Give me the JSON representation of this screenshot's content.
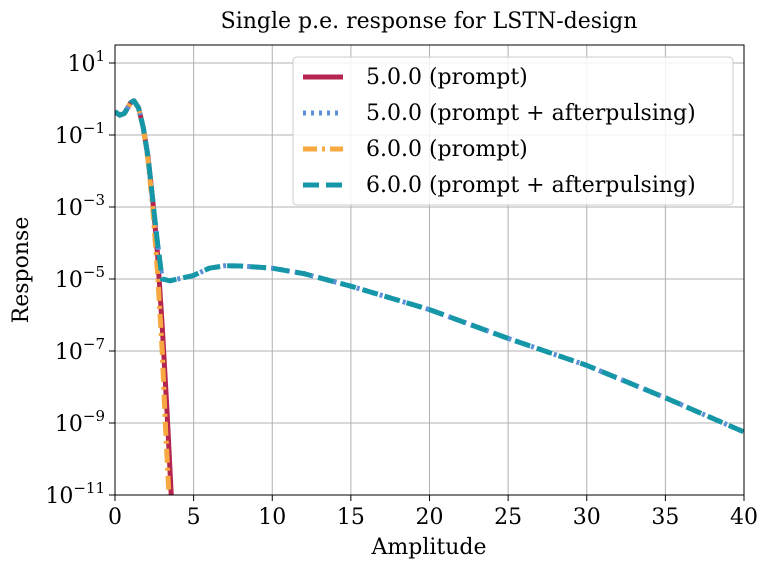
{
  "chart_data": {
    "type": "line",
    "title": "Single p.e. response for LSTN-design",
    "xlabel": "Amplitude",
    "ylabel": "Response",
    "xlim": [
      0,
      40
    ],
    "ylim_log10": [
      -11,
      1.5
    ],
    "yscale": "log",
    "grid": true,
    "legend_position": "top-right",
    "x_ticks": [
      0,
      5,
      10,
      15,
      20,
      25,
      30,
      35,
      40
    ],
    "y_ticks_log10": [
      1,
      -1,
      -3,
      -5,
      -7,
      -9,
      -11
    ],
    "y_tick_labels": [
      "10^1",
      "10^-1",
      "10^-3",
      "10^-5",
      "10^-7",
      "10^-9",
      "10^-11"
    ],
    "series": [
      {
        "name": "5.0.0 (prompt)",
        "color": "#b5254f",
        "style": "solid",
        "x": [
          0,
          0.3,
          0.6,
          1.0,
          1.2,
          1.5,
          1.8,
          2.1,
          2.4,
          2.7,
          3.0,
          3.3,
          3.6
        ],
        "log10y": [
          -0.35,
          -0.45,
          -0.4,
          -0.1,
          -0.05,
          -0.25,
          -0.8,
          -1.6,
          -2.8,
          -4.3,
          -6.3,
          -8.6,
          -11.2
        ]
      },
      {
        "name": "5.0.0 (prompt + afterpulsing)",
        "color": "#5b8fd6",
        "style": "dotted",
        "x": [
          0,
          0.3,
          0.6,
          1.0,
          1.2,
          1.5,
          1.8,
          2.1,
          2.4,
          2.7,
          3.0,
          3.5,
          4.0,
          5.0,
          6.0,
          7.0,
          8.0,
          10.0,
          12.0,
          15.0,
          20.0,
          25.0,
          30.0,
          35.0,
          40.0
        ],
        "log10y": [
          -0.35,
          -0.45,
          -0.4,
          -0.1,
          -0.05,
          -0.25,
          -0.8,
          -1.6,
          -2.8,
          -4.0,
          -5.0,
          -5.05,
          -5.0,
          -4.9,
          -4.7,
          -4.63,
          -4.64,
          -4.7,
          -4.85,
          -5.2,
          -5.85,
          -6.65,
          -7.4,
          -8.3,
          -9.25
        ]
      },
      {
        "name": "6.0.0 (prompt)",
        "color": "#f8a840",
        "style": "dashdot",
        "x": [
          0,
          0.3,
          0.6,
          1.0,
          1.2,
          1.5,
          1.8,
          2.1,
          2.4,
          2.7,
          3.0,
          3.2,
          3.45
        ],
        "log10y": [
          -0.35,
          -0.45,
          -0.4,
          -0.1,
          -0.05,
          -0.25,
          -0.8,
          -1.7,
          -3.0,
          -4.8,
          -7.0,
          -9.0,
          -11.2
        ]
      },
      {
        "name": "6.0.0 (prompt + afterpulsing)",
        "color": "#1597a8",
        "style": "dashed",
        "x": [
          0,
          0.3,
          0.6,
          1.0,
          1.2,
          1.5,
          1.8,
          2.1,
          2.4,
          2.7,
          3.0,
          3.5,
          4.0,
          5.0,
          6.0,
          7.0,
          8.0,
          10.0,
          12.0,
          15.0,
          20.0,
          25.0,
          30.0,
          35.0,
          40.0
        ],
        "log10y": [
          -0.35,
          -0.45,
          -0.4,
          -0.1,
          -0.05,
          -0.25,
          -0.8,
          -1.6,
          -2.8,
          -4.0,
          -5.0,
          -5.05,
          -5.0,
          -4.9,
          -4.7,
          -4.63,
          -4.64,
          -4.7,
          -4.85,
          -5.2,
          -5.85,
          -6.65,
          -7.4,
          -8.3,
          -9.25
        ]
      }
    ]
  }
}
